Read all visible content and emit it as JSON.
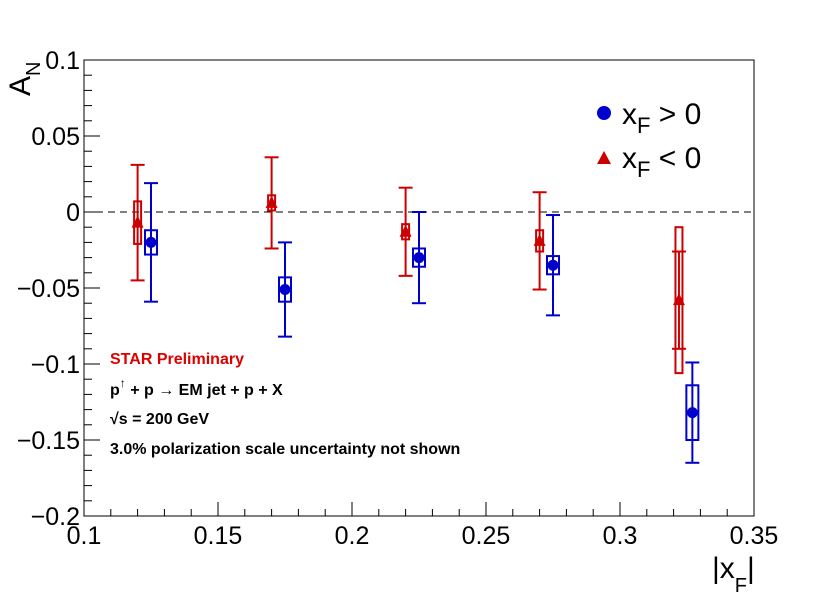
{
  "chart_data": {
    "type": "scatter",
    "title": "",
    "xlabel": "|x_F|",
    "ylabel": "A_N",
    "xlim": [
      0.1,
      0.35
    ],
    "ylim": [
      -0.2,
      0.1
    ],
    "x_ticks": [
      "0.1",
      "0.15",
      "0.2",
      "0.25",
      "0.3",
      "0.35"
    ],
    "y_ticks": [
      "−0.2",
      "−0.15",
      "−0.1",
      "−0.05",
      "0",
      "0.05",
      "0.1"
    ],
    "reference_line": 0,
    "series": [
      {
        "name": "x_F > 0",
        "label_main": "x",
        "label_sub": "F",
        "label_rel": " > 0",
        "marker": "circle",
        "color": "#0000cc",
        "x": [
          0.125,
          0.175,
          0.225,
          0.275,
          0.327
        ],
        "y": [
          -0.02,
          -0.051,
          -0.03,
          -0.035,
          -0.132
        ],
        "stat_err": [
          0.039,
          0.031,
          0.03,
          0.033,
          0.033
        ],
        "sys_err": [
          0.008,
          0.008,
          0.006,
          0.006,
          0.018
        ]
      },
      {
        "name": "x_F < 0",
        "label_main": "x",
        "label_sub": "F",
        "label_rel": " < 0",
        "marker": "triangle",
        "color": "#cc0000",
        "x": [
          0.12,
          0.17,
          0.22,
          0.27,
          0.322
        ],
        "y": [
          -0.007,
          0.006,
          -0.013,
          -0.019,
          -0.058
        ],
        "stat_err": [
          0.038,
          0.03,
          0.029,
          0.032,
          0.032
        ],
        "sys_err": [
          0.014,
          0.005,
          0.005,
          0.007,
          0.048
        ]
      }
    ],
    "annotations": {
      "collab": "STAR Preliminary",
      "reaction_p": "p",
      "reaction_arrow": "↑",
      "reaction_rest": " + p  → EM jet + p + X",
      "energy_sqrt": "√",
      "energy_rest": "s = 200 GeV",
      "note": "3.0% polarization scale uncertainty not shown"
    },
    "legend_position": "top-right"
  }
}
